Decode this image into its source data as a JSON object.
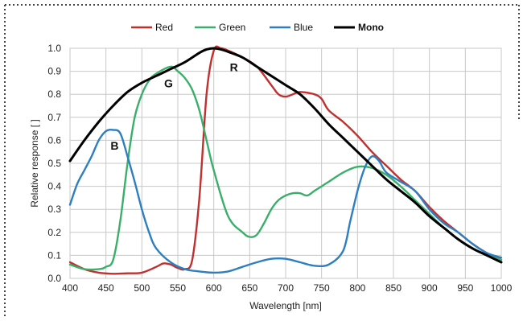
{
  "chart_data": {
    "type": "line",
    "xlabel": "Wavelength [nm]",
    "ylabel": "Relative response [ ]",
    "xlim": [
      400,
      1000
    ],
    "ylim": [
      0,
      1.0
    ],
    "x_ticks": [
      400,
      450,
      500,
      550,
      600,
      650,
      700,
      750,
      800,
      850,
      900,
      950,
      1000
    ],
    "y_ticks": [
      "0.0",
      "0.1",
      "0.2",
      "0.3",
      "0.4",
      "0.5",
      "0.6",
      "0.7",
      "0.8",
      "0.9",
      "1.0"
    ],
    "grid": true,
    "legend_position": "top-center",
    "series": [
      {
        "name": "Red",
        "color": "#c0302f",
        "x": [
          400,
          420,
          440,
          460,
          480,
          500,
          520,
          530,
          540,
          550,
          560,
          570,
          580,
          590,
          600,
          610,
          620,
          640,
          660,
          680,
          690,
          700,
          710,
          720,
          740,
          750,
          760,
          780,
          800,
          820,
          840,
          860,
          880,
          900,
          920,
          940,
          960,
          980,
          1000
        ],
        "values": [
          0.07,
          0.04,
          0.025,
          0.02,
          0.022,
          0.025,
          0.05,
          0.065,
          0.06,
          0.045,
          0.04,
          0.08,
          0.35,
          0.8,
          0.99,
          1.0,
          0.99,
          0.96,
          0.92,
          0.84,
          0.8,
          0.79,
          0.8,
          0.81,
          0.8,
          0.78,
          0.73,
          0.68,
          0.62,
          0.55,
          0.49,
          0.43,
          0.38,
          0.31,
          0.25,
          0.2,
          0.15,
          0.11,
          0.08
        ]
      },
      {
        "name": "Green",
        "color": "#3aaf6a",
        "x": [
          400,
          420,
          440,
          450,
          460,
          470,
          480,
          490,
          500,
          510,
          520,
          540,
          550,
          560,
          570,
          580,
          590,
          600,
          620,
          640,
          650,
          660,
          670,
          680,
          690,
          700,
          710,
          720,
          730,
          740,
          750,
          760,
          780,
          800,
          820,
          840,
          860,
          880,
          900,
          920,
          940,
          960,
          980,
          1000
        ],
        "values": [
          0.06,
          0.04,
          0.04,
          0.05,
          0.08,
          0.25,
          0.5,
          0.7,
          0.8,
          0.86,
          0.89,
          0.92,
          0.9,
          0.87,
          0.82,
          0.73,
          0.6,
          0.47,
          0.27,
          0.2,
          0.18,
          0.19,
          0.24,
          0.3,
          0.34,
          0.36,
          0.37,
          0.37,
          0.36,
          0.38,
          0.4,
          0.42,
          0.46,
          0.485,
          0.48,
          0.45,
          0.4,
          0.34,
          0.28,
          0.22,
          0.17,
          0.13,
          0.1,
          0.08
        ]
      },
      {
        "name": "Blue",
        "color": "#2d7fc0",
        "x": [
          400,
          410,
          420,
          430,
          440,
          450,
          460,
          470,
          480,
          490,
          500,
          510,
          520,
          540,
          560,
          580,
          600,
          620,
          640,
          660,
          680,
          700,
          720,
          740,
          760,
          780,
          790,
          800,
          810,
          820,
          830,
          840,
          860,
          880,
          900,
          920,
          940,
          960,
          980,
          1000
        ],
        "values": [
          0.32,
          0.41,
          0.47,
          0.53,
          0.6,
          0.64,
          0.645,
          0.63,
          0.53,
          0.42,
          0.3,
          0.2,
          0.13,
          0.07,
          0.04,
          0.03,
          0.025,
          0.03,
          0.05,
          0.07,
          0.085,
          0.085,
          0.07,
          0.055,
          0.06,
          0.12,
          0.25,
          0.38,
          0.48,
          0.53,
          0.51,
          0.46,
          0.42,
          0.38,
          0.3,
          0.24,
          0.2,
          0.15,
          0.11,
          0.09
        ]
      },
      {
        "name": "Mono",
        "color": "#000000",
        "x": [
          400,
          420,
          440,
          460,
          480,
          500,
          520,
          540,
          560,
          580,
          590,
          600,
          610,
          620,
          640,
          660,
          680,
          700,
          720,
          740,
          760,
          780,
          800,
          820,
          840,
          860,
          880,
          900,
          920,
          940,
          960,
          980,
          1000
        ],
        "values": [
          0.51,
          0.6,
          0.68,
          0.75,
          0.81,
          0.85,
          0.88,
          0.91,
          0.94,
          0.98,
          0.995,
          1.0,
          0.995,
          0.985,
          0.96,
          0.92,
          0.88,
          0.84,
          0.8,
          0.74,
          0.67,
          0.61,
          0.55,
          0.49,
          0.43,
          0.38,
          0.33,
          0.27,
          0.22,
          0.17,
          0.13,
          0.1,
          0.07
        ]
      }
    ],
    "annotations": [
      {
        "text": "B",
        "x": 462,
        "y": 0.56
      },
      {
        "text": "G",
        "x": 537,
        "y": 0.83
      },
      {
        "text": "R",
        "x": 628,
        "y": 0.9
      }
    ]
  }
}
